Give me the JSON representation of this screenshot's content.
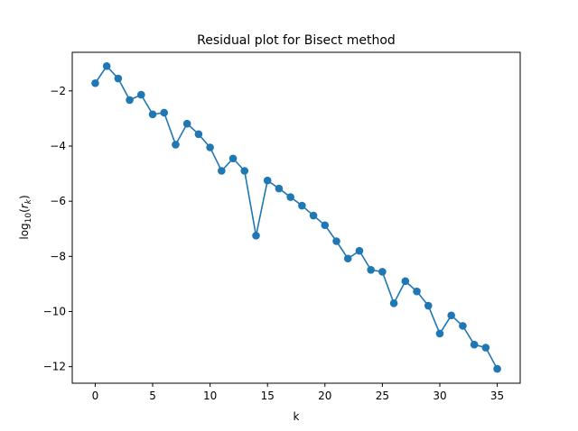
{
  "chart_data": {
    "type": "line",
    "title": "Residual plot for Bisect method",
    "xlabel": "k",
    "ylabel": {
      "prefix": "log",
      "base": "10",
      "open": "(",
      "var": "r",
      "sub": "k",
      "close": ")"
    },
    "xlim": [
      -2,
      37
    ],
    "ylim": [
      -12.6,
      -0.6
    ],
    "xticks": [
      0,
      5,
      10,
      15,
      20,
      25,
      30,
      35
    ],
    "yticks": [
      -2,
      -4,
      -6,
      -8,
      -10,
      -12
    ],
    "grid": false,
    "series": [
      {
        "color": "#1f77b4",
        "marker": "circle",
        "x": [
          0,
          1,
          2,
          3,
          4,
          5,
          6,
          7,
          8,
          9,
          10,
          11,
          12,
          13,
          14,
          15,
          16,
          17,
          18,
          19,
          20,
          21,
          22,
          23,
          24,
          25,
          26,
          27,
          28,
          29,
          30,
          31,
          32,
          33,
          34,
          35
        ],
        "y": [
          -1.72,
          -1.1,
          -1.55,
          -2.33,
          -2.14,
          -2.85,
          -2.79,
          -3.95,
          -3.19,
          -3.57,
          -4.05,
          -4.9,
          -4.45,
          -4.9,
          -7.25,
          -5.25,
          -5.54,
          -5.85,
          -6.16,
          -6.52,
          -6.87,
          -7.45,
          -8.08,
          -7.8,
          -8.49,
          -8.56,
          -9.7,
          -8.9,
          -9.27,
          -9.79,
          -10.8,
          -10.14,
          -10.52,
          -11.2,
          -11.31,
          -12.08
        ]
      }
    ]
  }
}
